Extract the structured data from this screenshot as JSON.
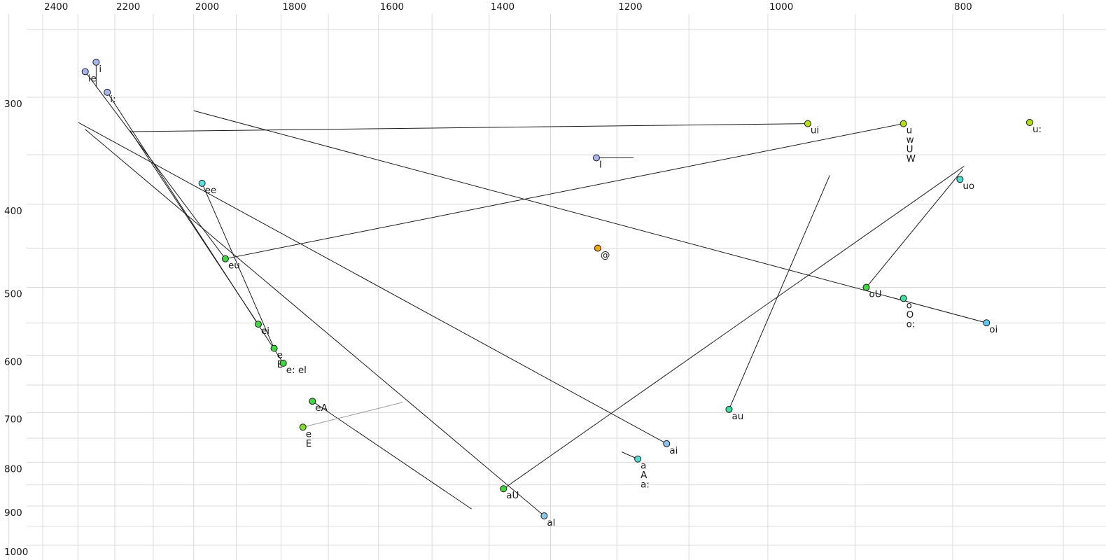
{
  "chart_data": {
    "type": "scatter",
    "title": "",
    "description": "Vowel formant chart (F2 horizontal, decreasing rightward; F1 vertical, increasing downward; both log-scaled) with vowel points and diphthong trajectory lines",
    "x_axis": {
      "unit": "Hz",
      "scale": "log",
      "direction": "decreasing-rightward",
      "ticks": [
        2400,
        2200,
        2000,
        1800,
        1600,
        1400,
        1200,
        1000,
        800
      ]
    },
    "y_axis": {
      "unit": "Hz",
      "scale": "log",
      "direction": "increasing-downward",
      "ticks": [
        300,
        400,
        500,
        600,
        700,
        800,
        900,
        1000
      ]
    },
    "grid": {
      "color": "#d9d9d9",
      "x_minor_step": 100,
      "x_range": [
        2500,
        700
      ],
      "y_minor_step": 50,
      "y_range": [
        250,
        1000
      ]
    },
    "point_style": {
      "radius": 4.5,
      "stroke": "#1a1a1a",
      "label_color": "#1a1a1a",
      "line_color": "#1a1a1a"
    },
    "points": [
      {
        "labels": [
          "ie"
        ],
        "layout": "stack",
        "f2": 2280,
        "f1": 280,
        "fill": "#a9b6ee",
        "traj": {
          "f2": 1925,
          "f1": 463
        }
      },
      {
        "labels": [
          "i"
        ],
        "layout": "stack",
        "f2": 2250,
        "f1": 273,
        "fill": "#a9b6ee",
        "traj": {
          "f2": 2250,
          "f1": 292
        }
      },
      {
        "labels": [
          "i:"
        ],
        "layout": "stack",
        "f2": 2220,
        "f1": 296,
        "fill": "#a9b6ee",
        "traj": {
          "f2": 1795,
          "f1": 613
        }
      },
      {
        "labels": [
          "I"
        ],
        "layout": "stack",
        "f2": 1230,
        "f1": 353,
        "fill": "#a9b6ee",
        "traj": {
          "f2": 1176,
          "f1": 353
        }
      },
      {
        "labels": [
          "ee"
        ],
        "layout": "stack",
        "f2": 1980,
        "f1": 378,
        "fill": "#5ee1e1",
        "traj": {
          "f2": 1815,
          "f1": 589
        }
      },
      {
        "labels": [
          "eu"
        ],
        "layout": "stack",
        "f2": 1925,
        "f1": 463,
        "fill": "#3fd63f",
        "traj": {
          "f2": 849,
          "f1": 322
        }
      },
      {
        "labels": [
          "ei"
        ],
        "layout": "stack",
        "f2": 1850,
        "f1": 552,
        "fill": "#3fd63f",
        "traj": {
          "f2": 2160,
          "f1": 328
        }
      },
      {
        "labels": [
          "e",
          "E"
        ],
        "layout": "stack",
        "f2": 1815,
        "f1": 589,
        "fill": "#3fd63f"
      },
      {
        "labels": [
          "e:",
          "el"
        ],
        "layout": "inline",
        "f2": 1795,
        "f1": 613,
        "fill": "#3fd63f"
      },
      {
        "labels": [
          "eA"
        ],
        "layout": "stack",
        "f2": 1733,
        "f1": 679,
        "fill": "#3fd63f",
        "traj": {
          "f2": 1430,
          "f1": 907
        }
      },
      {
        "labels": [
          "e",
          "E"
        ],
        "layout": "stack",
        "f2": 1753,
        "f1": 728,
        "fill": "#7fdd2c",
        "label_color": "#8b8b9b",
        "traj": {
          "f2": 1554,
          "f1": 681
        },
        "traj_color": "#9a9aa6"
      },
      {
        "labels": [
          "aU"
        ],
        "layout": "stack",
        "f2": 1376,
        "f1": 859,
        "fill": "#3fd63f",
        "traj": {
          "f2": 789,
          "f1": 361
        }
      },
      {
        "labels": [
          "al"
        ],
        "layout": "stack",
        "f2": 1310,
        "f1": 924,
        "fill": "#8cc3ea",
        "traj": {
          "f2": 2280,
          "f1": 327
        }
      },
      {
        "labels": [
          "ai"
        ],
        "layout": "stack",
        "f2": 1130,
        "f1": 761,
        "fill": "#8cc3ea",
        "traj": {
          "f2": 2299,
          "f1": 321
        }
      },
      {
        "labels": [
          "a",
          "A",
          "a:"
        ],
        "layout": "stack",
        "f2": 1170,
        "f1": 793,
        "fill": "#52ddd2",
        "traj": {
          "f2": 1193,
          "f1": 778
        }
      },
      {
        "labels": [
          "@"
        ],
        "layout": "stack",
        "f2": 1228,
        "f1": 450,
        "fill": "#f0a50a"
      },
      {
        "labels": [
          "au"
        ],
        "layout": "stack",
        "f2": 1048,
        "f1": 694,
        "fill": "#3edda0",
        "traj": {
          "f2": 928,
          "f1": 370
        }
      },
      {
        "labels": [
          "ui"
        ],
        "layout": "stack",
        "f2": 953,
        "f1": 322,
        "fill": "#b3e116",
        "traj": {
          "f2": 2156,
          "f1": 329
        }
      },
      {
        "labels": [
          "u",
          "w",
          "U",
          "W"
        ],
        "layout": "stack",
        "f2": 849,
        "f1": 322,
        "fill": "#b3e116"
      },
      {
        "labels": [
          "u:"
        ],
        "layout": "stack",
        "f2": 729,
        "f1": 321,
        "fill": "#b3e116"
      },
      {
        "labels": [
          "uo"
        ],
        "layout": "stack",
        "f2": 793,
        "f1": 374,
        "fill": "#52ddd2"
      },
      {
        "labels": [
          "oU"
        ],
        "layout": "stack",
        "f2": 888,
        "f1": 500,
        "fill": "#3fd63f",
        "traj": {
          "f2": 790,
          "f1": 364
        }
      },
      {
        "labels": [
          "o",
          "O",
          "o:"
        ],
        "layout": "stack",
        "f2": 849,
        "f1": 515,
        "fill": "#3edda0"
      },
      {
        "labels": [
          "oi"
        ],
        "layout": "stack",
        "f2": 768,
        "f1": 550,
        "fill": "#5cc8f0",
        "traj": {
          "f2": 2000,
          "f1": 311
        }
      }
    ]
  }
}
